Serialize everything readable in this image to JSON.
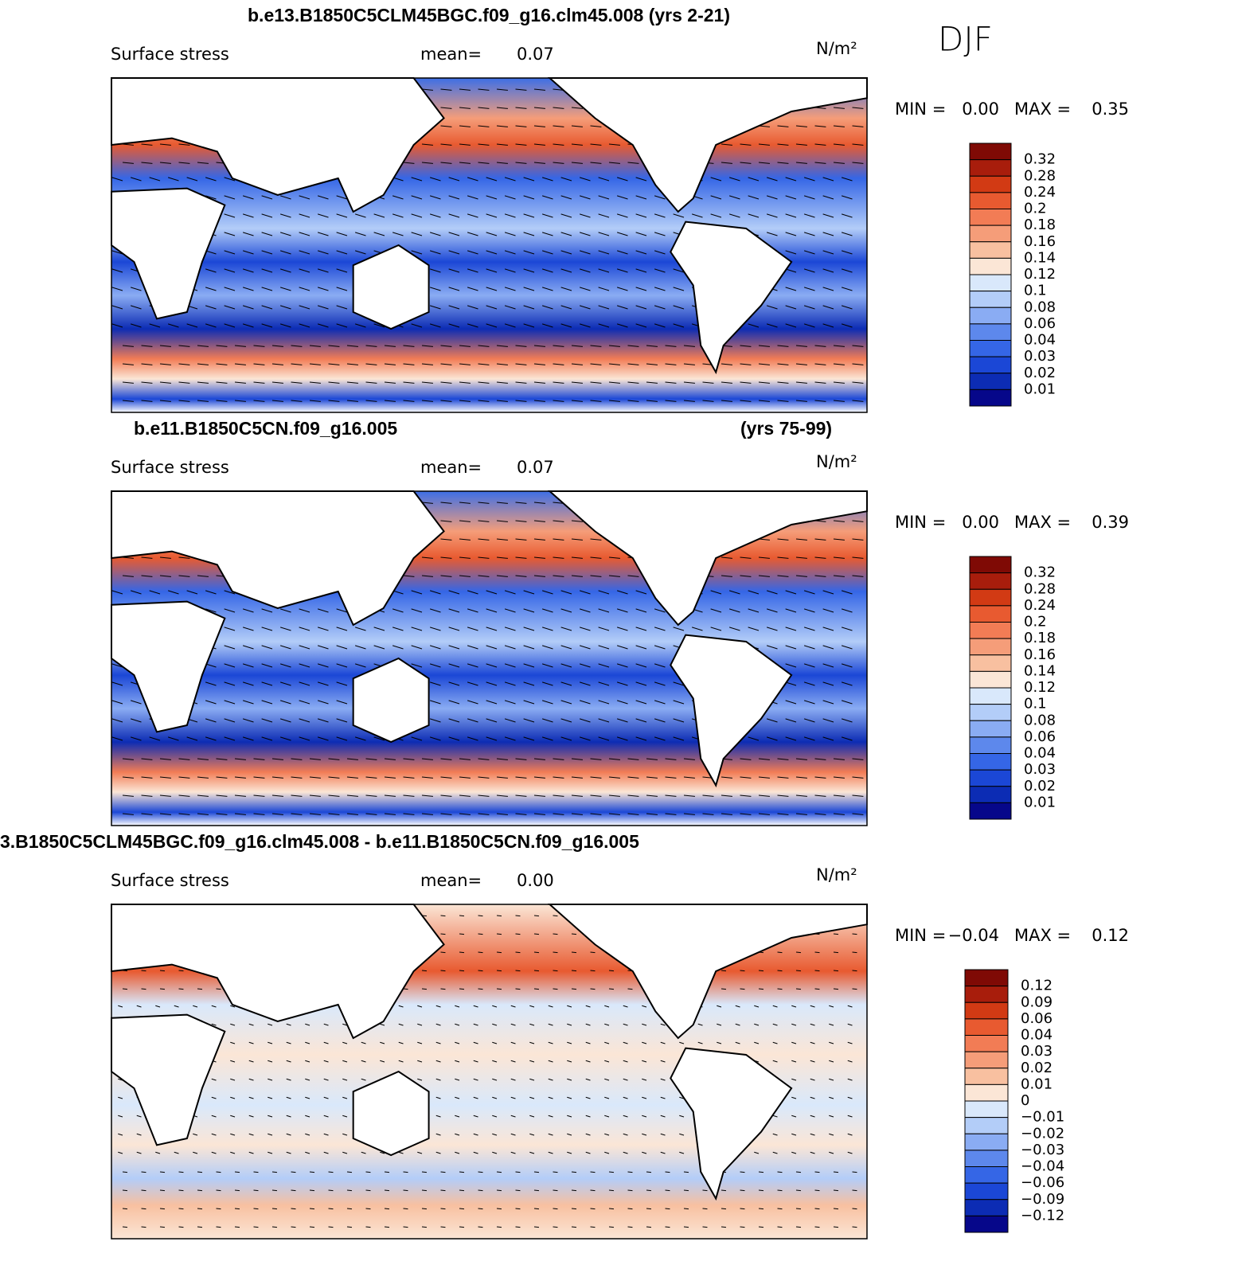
{
  "figure_label": "DJF",
  "panels": [
    {
      "title": "b.e13.B1850C5CLM45BGC.f09_g16.clm45.008 (yrs 2-21)",
      "field": "Surface stress",
      "mean_label": "mean=",
      "mean": "0.07",
      "units": "N/m²",
      "min_label": "MIN =",
      "min": "0.00",
      "max_label": "MAX =",
      "max": "0.35",
      "colorbar": {
        "labels": [
          "0.32",
          "0.28",
          "0.24",
          "0.2",
          "0.18",
          "0.16",
          "0.14",
          "0.12",
          "0.1",
          "0.08",
          "0.06",
          "0.04",
          "0.03",
          "0.02",
          "0.01"
        ],
        "colors": [
          "#7f0a05",
          "#a81d0c",
          "#d23a14",
          "#e85a30",
          "#f27c55",
          "#f59d79",
          "#f8c0a0",
          "#fbe6d6",
          "#d9e8fb",
          "#b3cdf8",
          "#8aacf3",
          "#5d88ec",
          "#3566e6",
          "#1b47d6",
          "#0c2cb4",
          "#06078a"
        ]
      }
    },
    {
      "title": "b.e11.B1850C5CN.f09_g16.005",
      "title_right": "(yrs 75-99)",
      "field": "Surface stress",
      "mean_label": "mean=",
      "mean": "0.07",
      "units": "N/m²",
      "min_label": "MIN =",
      "min": "0.00",
      "max_label": "MAX =",
      "max": "0.39",
      "colorbar": {
        "labels": [
          "0.32",
          "0.28",
          "0.24",
          "0.2",
          "0.18",
          "0.16",
          "0.14",
          "0.12",
          "0.1",
          "0.08",
          "0.06",
          "0.04",
          "0.03",
          "0.02",
          "0.01"
        ],
        "colors": [
          "#7f0a05",
          "#a81d0c",
          "#d23a14",
          "#e85a30",
          "#f27c55",
          "#f59d79",
          "#f8c0a0",
          "#fbe6d6",
          "#d9e8fb",
          "#b3cdf8",
          "#8aacf3",
          "#5d88ec",
          "#3566e6",
          "#1b47d6",
          "#0c2cb4",
          "#06078a"
        ]
      }
    },
    {
      "title": "3.B1850C5CLM45BGC.f09_g16.clm45.008 - b.e11.B1850C5CN.f09_g16.005",
      "field": "Surface stress",
      "mean_label": "mean=",
      "mean": "0.00",
      "units": "N/m²",
      "min_label": "MIN =",
      "min": "−0.04",
      "max_label": "MAX =",
      "max": "0.12",
      "colorbar": {
        "labels": [
          "0.12",
          "0.09",
          "0.06",
          "0.04",
          "0.03",
          "0.02",
          "0.01",
          "0",
          "−0.01",
          "−0.02",
          "−0.03",
          "−0.04",
          "−0.06",
          "−0.09",
          "−0.12"
        ],
        "colors": [
          "#7f0a05",
          "#a81d0c",
          "#d23a14",
          "#e85a30",
          "#f27c55",
          "#f59d79",
          "#f8c0a0",
          "#fbe6d6",
          "#d9e8fb",
          "#b3cdf8",
          "#8aacf3",
          "#5d88ec",
          "#3566e6",
          "#1b47d6",
          "#0c2cb4",
          "#06078a"
        ]
      }
    }
  ]
}
